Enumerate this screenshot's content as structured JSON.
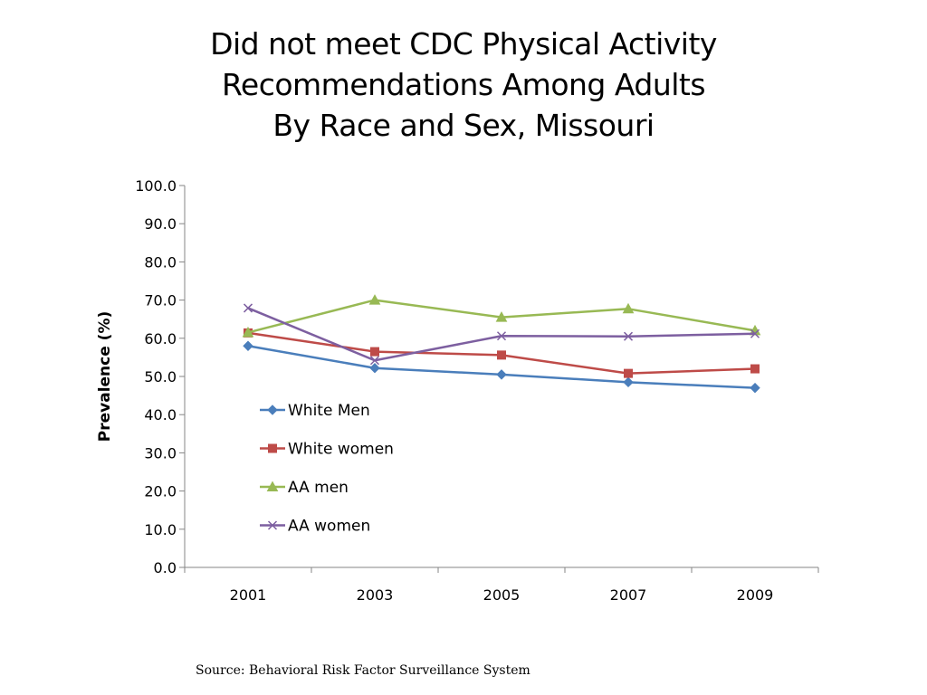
{
  "chart_data": {
    "type": "line",
    "title": [
      "Did not meet CDC Physical Activity",
      "Recommendations Among Adults",
      "By Race and Sex, Missouri"
    ],
    "ylabel": "Prevalence (%)",
    "xlabel": "",
    "categories": [
      "2001",
      "2003",
      "2005",
      "2007",
      "2009"
    ],
    "ylim": [
      0,
      100
    ],
    "ytick_step": 10,
    "ytick_labels": [
      "0.0",
      "10.0",
      "20.0",
      "30.0",
      "40.0",
      "50.0",
      "60.0",
      "70.0",
      "80.0",
      "90.0",
      "100.0"
    ],
    "grid": false,
    "legend_position": "inside-left",
    "series": [
      {
        "name": "White Men",
        "marker": "diamond",
        "color": "#4a7ebb",
        "values": [
          58.0,
          52.2,
          50.5,
          48.5,
          47.0
        ]
      },
      {
        "name": "White women",
        "marker": "square",
        "color": "#be4b48",
        "values": [
          61.4,
          56.5,
          55.6,
          50.8,
          52.0
        ]
      },
      {
        "name": "AA men",
        "marker": "triangle",
        "color": "#98b954",
        "values": [
          61.5,
          70.0,
          65.5,
          67.7,
          62.0
        ]
      },
      {
        "name": "AA women",
        "marker": "x",
        "color": "#7d5fa0",
        "values": [
          67.9,
          54.2,
          60.6,
          60.5,
          61.2
        ]
      }
    ]
  },
  "source": "Source: Behavioral Risk Factor Surveillance System"
}
